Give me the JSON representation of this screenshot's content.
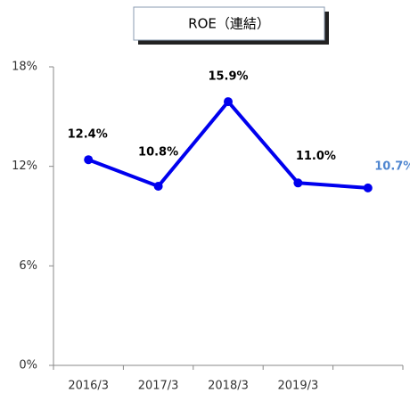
{
  "chart_data": {
    "type": "line",
    "title": "ROE（連結）",
    "categories": [
      "2016/3",
      "2017/3",
      "2018/3",
      "2019/3",
      null
    ],
    "series": [
      {
        "name": "ROE",
        "color": "#0000ee",
        "values": [
          12.4,
          10.8,
          15.9,
          11.0,
          10.7
        ],
        "value_labels": [
          "12.4%",
          "10.8%",
          "15.9%",
          "11.0%",
          "10.7%"
        ],
        "value_label_colors": [
          "#000000",
          "#000000",
          "#000000",
          "#000000",
          "#4f86d0"
        ]
      }
    ],
    "ylim": [
      0,
      18
    ],
    "yticks": [
      {
        "value": 0,
        "label": "0%"
      },
      {
        "value": 6,
        "label": "6%"
      },
      {
        "value": 12,
        "label": "12%"
      },
      {
        "value": 18,
        "label": "18%"
      }
    ]
  }
}
